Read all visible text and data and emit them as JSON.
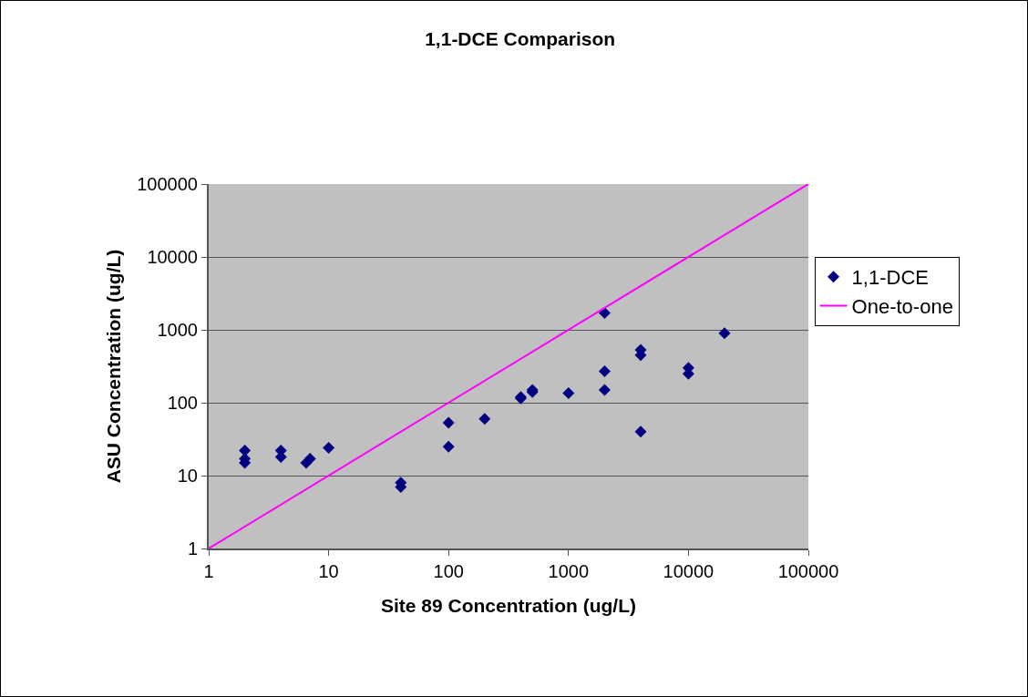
{
  "chart_data": {
    "type": "scatter",
    "title": "1,1-DCE Comparison",
    "xlabel": "Site 89 Concentration (ug/L)",
    "ylabel": "ASU Concentration (ug/L)",
    "log": "xy",
    "grid": "y",
    "legend": "right",
    "marker": "diamond",
    "xlim": [
      1,
      100000
    ],
    "ylim": [
      1,
      100000
    ],
    "xticks": [
      1,
      10,
      100,
      1000,
      10000,
      100000
    ],
    "yticks": [
      1,
      10,
      100,
      1000,
      10000,
      100000
    ],
    "series": [
      {
        "name": "1,1-DCE",
        "color": "#000080",
        "x": [
          2,
          2,
          2,
          4,
          4,
          6.5,
          7,
          10,
          40,
          40,
          100,
          100,
          200,
          400,
          400,
          500,
          500,
          1000,
          2000,
          2000,
          2000,
          4000,
          4000,
          4000,
          10000,
          10000,
          20000
        ],
        "values": [
          22,
          17,
          15,
          22,
          18,
          15,
          17,
          24,
          8,
          7,
          53,
          25,
          60,
          120,
          115,
          150,
          140,
          135,
          1700,
          270,
          150,
          530,
          450,
          40,
          300,
          250,
          900
        ]
      },
      {
        "name": "One-to-one",
        "type": "line",
        "color": "#ff00ff",
        "marker": "none",
        "line_style": "solid",
        "x": [
          1,
          100000
        ],
        "values": [
          1,
          100000
        ]
      }
    ]
  }
}
